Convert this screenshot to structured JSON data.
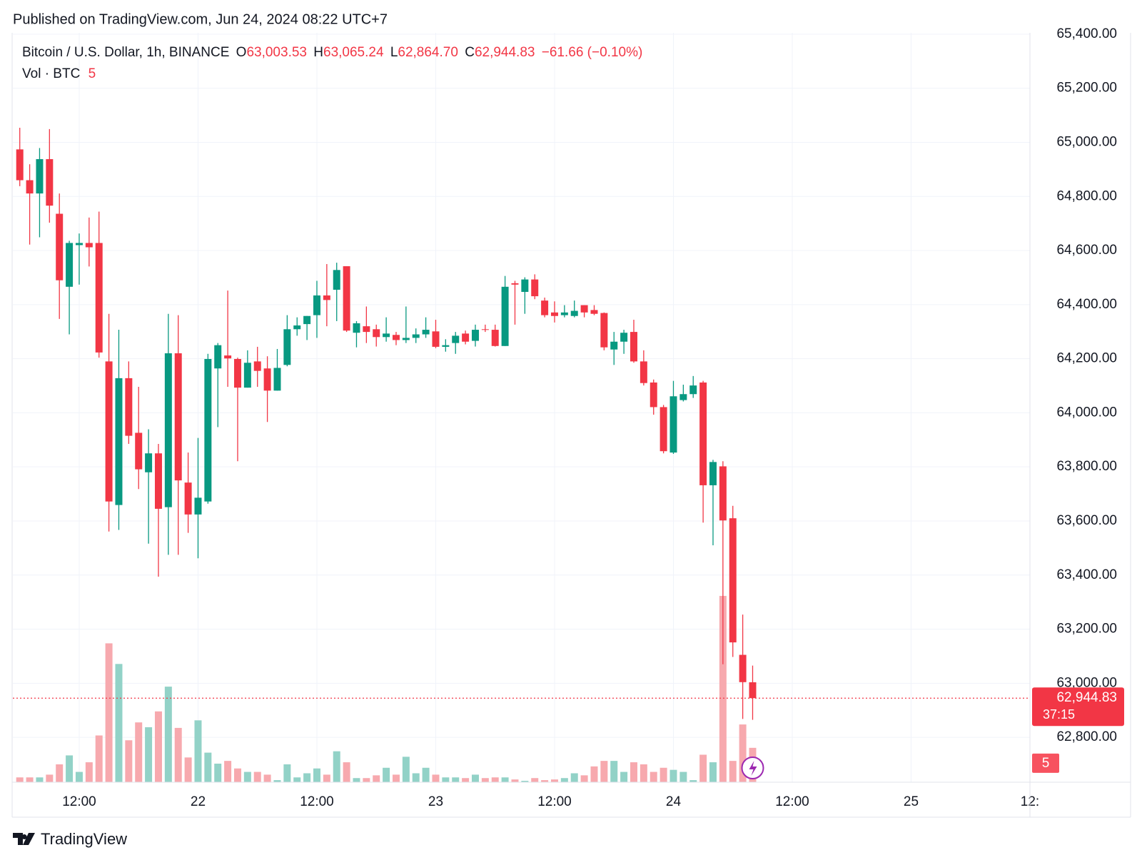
{
  "header": {
    "published": "Published on TradingView.com, Jun 24, 2024 08:22 UTC+7"
  },
  "legend": {
    "symbol": "Bitcoin / U.S. Dollar, 1h, BINANCE",
    "o_label": "O",
    "o": "63,003.53",
    "h_label": "H",
    "h": "63,065.24",
    "l_label": "L",
    "l": "62,864.70",
    "c_label": "C",
    "c": "62,944.83",
    "change": "−61.66 (−0.10%)",
    "volume_label": "Vol · BTC"
  },
  "footer": {
    "brand": "TradingView"
  },
  "chart_data": {
    "type": "candlestick",
    "x": [
      "2024-06-21T06:00",
      "2024-06-21T07:00",
      "2024-06-21T08:00",
      "2024-06-21T09:00",
      "2024-06-21T10:00",
      "2024-06-21T11:00",
      "2024-06-21T12:00",
      "2024-06-21T13:00",
      "2024-06-21T14:00",
      "2024-06-21T15:00",
      "2024-06-21T16:00",
      "2024-06-21T17:00",
      "2024-06-21T18:00",
      "2024-06-21T19:00",
      "2024-06-21T20:00",
      "2024-06-21T21:00",
      "2024-06-21T22:00",
      "2024-06-21T23:00",
      "2024-06-22T00:00",
      "2024-06-22T01:00",
      "2024-06-22T02:00",
      "2024-06-22T03:00",
      "2024-06-22T04:00",
      "2024-06-22T05:00",
      "2024-06-22T06:00",
      "2024-06-22T07:00",
      "2024-06-22T08:00",
      "2024-06-22T09:00",
      "2024-06-22T10:00",
      "2024-06-22T11:00",
      "2024-06-22T12:00",
      "2024-06-22T13:00",
      "2024-06-22T14:00",
      "2024-06-22T15:00",
      "2024-06-22T16:00",
      "2024-06-22T17:00",
      "2024-06-22T18:00",
      "2024-06-22T19:00",
      "2024-06-22T20:00",
      "2024-06-22T21:00",
      "2024-06-22T22:00",
      "2024-06-22T23:00",
      "2024-06-23T00:00",
      "2024-06-23T01:00",
      "2024-06-23T02:00",
      "2024-06-23T03:00",
      "2024-06-23T04:00",
      "2024-06-23T05:00",
      "2024-06-23T06:00",
      "2024-06-23T07:00",
      "2024-06-23T08:00",
      "2024-06-23T09:00",
      "2024-06-23T10:00",
      "2024-06-23T11:00",
      "2024-06-23T12:00",
      "2024-06-23T13:00",
      "2024-06-23T14:00",
      "2024-06-23T15:00",
      "2024-06-23T16:00",
      "2024-06-23T17:00",
      "2024-06-23T18:00",
      "2024-06-23T19:00",
      "2024-06-23T20:00",
      "2024-06-23T21:00",
      "2024-06-23T22:00",
      "2024-06-23T23:00",
      "2024-06-24T00:00",
      "2024-06-24T01:00",
      "2024-06-24T02:00",
      "2024-06-24T03:00",
      "2024-06-24T04:00",
      "2024-06-24T05:00",
      "2024-06-24T06:00",
      "2024-06-24T07:00",
      "2024-06-24T08:00"
    ],
    "open": [
      64974,
      64860,
      64811,
      64938,
      64736,
      64466,
      64620,
      64628,
      64628,
      64190,
      63659,
      64128,
      63926,
      63780,
      63850,
      63651,
      64220,
      63742,
      63624,
      63672,
      64164,
      64212,
      64199,
      64093,
      64190,
      64164,
      64082,
      64177,
      64309,
      64328,
      64361,
      64434,
      64455,
      64542,
      64296,
      64320,
      64309,
      64280,
      64288,
      64269,
      64277,
      64290,
      64301,
      64244,
      64258,
      64293,
      64266,
      64309,
      64307,
      64247,
      64479,
      64447,
      64493,
      64415,
      64371,
      64361,
      64358,
      64398,
      64380,
      64369,
      64234,
      64263,
      64299,
      64190,
      64112,
      64021,
      63853,
      64047,
      64069,
      64112,
      63732,
      63802,
      63610,
      63105,
      63003.53
    ],
    "high": [
      65054,
      64919,
      64979,
      65049,
      64811,
      64636,
      64663,
      64722,
      64744,
      64366,
      64307,
      64190,
      64096,
      63939,
      63885,
      64366,
      64361,
      63853,
      63907,
      64218,
      64258,
      64452,
      64204,
      64231,
      64244,
      64209,
      64236,
      64361,
      64353,
      64358,
      64488,
      64550,
      64555,
      64542,
      64339,
      64393,
      64326,
      64353,
      64299,
      64393,
      64312,
      64353,
      64344,
      64272,
      64299,
      64304,
      64326,
      64326,
      64326,
      64506,
      64488,
      64501,
      64512,
      64426,
      64412,
      64398,
      64415,
      64398,
      64398,
      64371,
      64299,
      64307,
      64344,
      64231,
      64123,
      64029,
      64118,
      64104,
      64136,
      64118,
      63826,
      63821,
      63656,
      63254,
      63065.24
    ],
    "low": [
      64838,
      64622,
      64649,
      64703,
      64347,
      64290,
      64474,
      64541,
      64204,
      63561,
      63567,
      63885,
      63718,
      63516,
      63394,
      63475,
      63475,
      63556,
      63462,
      63664,
      63947,
      64096,
      63821,
      64093,
      64096,
      63966,
      64082,
      64172,
      64285,
      64269,
      64277,
      64320,
      64339,
      64299,
      64242,
      64258,
      64245,
      64263,
      64250,
      64258,
      64258,
      64277,
      64239,
      64226,
      64218,
      64253,
      64245,
      64299,
      64245,
      64247,
      64326,
      64366,
      64420,
      64353,
      64334,
      64353,
      64353,
      64353,
      64361,
      64231,
      64177,
      64218,
      64185,
      64101,
      63993,
      63850,
      63848,
      64042,
      64055,
      63594,
      63510,
      63070,
      63097,
      62868,
      62864.7
    ],
    "close": [
      64860,
      64811,
      64938,
      64766,
      64490,
      64628,
      64628,
      64612,
      64223,
      63672,
      64128,
      63915,
      63791,
      63850,
      63645,
      64220,
      63750,
      63624,
      63686,
      64199,
      64250,
      64201,
      64093,
      64185,
      64155,
      64082,
      64166,
      64309,
      64323,
      64358,
      64434,
      64417,
      64528,
      64304,
      64331,
      64299,
      64280,
      64293,
      64269,
      64277,
      64290,
      64307,
      64244,
      64250,
      64285,
      64263,
      64307,
      64307,
      64247,
      64466,
      64474,
      64493,
      64431,
      64361,
      64358,
      64371,
      64377,
      64371,
      64366,
      64242,
      64263,
      64296,
      64190,
      64110,
      64021,
      63858,
      64061,
      64069,
      64101,
      63732,
      63818,
      63602,
      63151,
      63004,
      62944.83
    ],
    "volume": [
      0.7,
      0.7,
      0.7,
      1.1,
      2.6,
      3.9,
      1.5,
      2.9,
      6.8,
      20.2,
      17.2,
      6.1,
      8.7,
      8.0,
      10.3,
      13.9,
      7.9,
      3.6,
      9.0,
      4.3,
      2.7,
      3.1,
      2.0,
      1.5,
      1.5,
      1.1,
      0.3,
      2.6,
      0.7,
      1.3,
      2.0,
      1.1,
      4.5,
      2.9,
      0.6,
      0.6,
      1.0,
      2.1,
      1.1,
      3.7,
      1.3,
      2.1,
      1.1,
      0.7,
      0.7,
      0.6,
      1.1,
      0.6,
      0.7,
      0.7,
      0.4,
      0.2,
      0.6,
      0.3,
      0.4,
      0.6,
      1.3,
      1.0,
      2.3,
      3.1,
      3.1,
      1.5,
      2.9,
      2.6,
      1.5,
      2.1,
      1.8,
      1.5,
      0.3,
      4.0,
      2.9,
      27.1,
      3.1,
      8.4,
      5
    ],
    "volume_ylim": [
      0,
      109
    ],
    "up_color": "#089981",
    "down_color": "#f23645",
    "up_volume_color": "#92d2c7",
    "down_volume_color": "#f7a9ae",
    "ylim": [
      62634,
      65405
    ],
    "yticks": [
      {
        "value": 62800,
        "label": "62,800.00"
      },
      {
        "value": 63000,
        "label": "63,000.00"
      },
      {
        "value": 63200,
        "label": "63,200.00"
      },
      {
        "value": 63400,
        "label": "63,400.00"
      },
      {
        "value": 63600,
        "label": "63,600.00"
      },
      {
        "value": 63800,
        "label": "63,800.00"
      },
      {
        "value": 64000,
        "label": "64,000.00"
      },
      {
        "value": 64200,
        "label": "64,200.00"
      },
      {
        "value": 64400,
        "label": "64,400.00"
      },
      {
        "value": 64600,
        "label": "64,600.00"
      },
      {
        "value": 64800,
        "label": "64,800.00"
      },
      {
        "value": 65000,
        "label": "65,000.00"
      },
      {
        "value": 65200,
        "label": "65,200.00"
      },
      {
        "value": 65400,
        "label": "65,400.00"
      }
    ],
    "xlim": [
      "2024-06-21T05:18",
      "2024-06-25T12:00"
    ],
    "xticks": [
      {
        "value": "2024-06-21T12:00",
        "label": "12:00"
      },
      {
        "value": "2024-06-22T00:00",
        "label": "22"
      },
      {
        "value": "2024-06-22T12:00",
        "label": "12:00"
      },
      {
        "value": "2024-06-23T00:00",
        "label": "23"
      },
      {
        "value": "2024-06-23T12:00",
        "label": "12:00"
      },
      {
        "value": "2024-06-24T00:00",
        "label": "24"
      },
      {
        "value": "2024-06-24T12:00",
        "label": "12:00"
      },
      {
        "value": "2024-06-25T00:00",
        "label": "25"
      },
      {
        "value": "2024-06-25T12:00",
        "label": "12:"
      }
    ],
    "grid": true,
    "last_price": {
      "value": 62944.83,
      "label": "62,944.83"
    },
    "countdown": "37:15"
  }
}
